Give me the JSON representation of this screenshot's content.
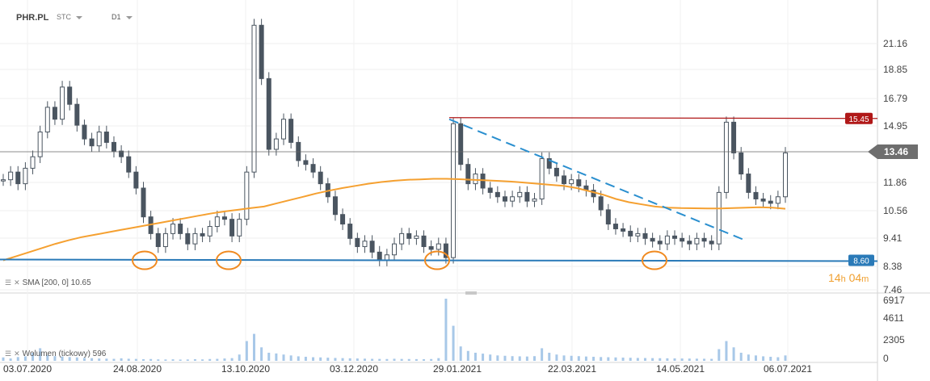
{
  "header": {
    "symbol": "PHR.PL",
    "market": "STC",
    "timeframe": "D1"
  },
  "indicators": {
    "sma_label": "SMA [200, 0] 10.65",
    "volume_label": "Wolumen (tickowy) 596"
  },
  "countdown": {
    "hours": "14",
    "h_unit": "h",
    "minutes": "04",
    "m_unit": "m"
  },
  "colors": {
    "candle": "#4a5560",
    "sma": "#f5a030",
    "support": "#2a7ab8",
    "resistance": "#b01818",
    "trend": "#2a8fcf",
    "current": "#666666",
    "volume": "#a8c8e8"
  },
  "chart_data": {
    "type": "candlestick",
    "y_axis_ticks": [
      "21.16",
      "18.85",
      "16.79",
      "14.95",
      "13.46",
      "11.86",
      "10.56",
      "9.41",
      "8.38",
      "7.46"
    ],
    "ylim": [
      7.46,
      23.8
    ],
    "volume_ticks": [
      "6917",
      "4611",
      "2305",
      "0"
    ],
    "volume_max": 6917,
    "x_tick_labels": [
      "03.07.2020",
      "24.08.2020",
      "13.10.2020",
      "03.12.2020",
      "29.01.2021",
      "22.03.2021",
      "14.05.2021",
      "06.07.2021"
    ],
    "price_labels": {
      "resistance": "15.45",
      "current": "13.46",
      "support": "8.60"
    },
    "levels": {
      "resistance": 15.45,
      "current": 13.46,
      "support": 8.6
    },
    "close_series": [
      12.0,
      12.4,
      11.8,
      12.6,
      13.2,
      14.6,
      16.2,
      15.4,
      17.6,
      16.4,
      15.0,
      14.2,
      13.8,
      14.6,
      14.0,
      13.5,
      13.2,
      12.4,
      11.6,
      10.3,
      9.6,
      9.1,
      9.6,
      10.0,
      9.6,
      9.2,
      9.6,
      9.5,
      9.9,
      10.3,
      10.2,
      9.5,
      10.2,
      12.4,
      22.8,
      18.2,
      13.6,
      14.2,
      15.4,
      14.0,
      13.0,
      12.8,
      12.4,
      11.8,
      11.2,
      10.4,
      10.0,
      9.4,
      9.1,
      9.3,
      8.9,
      8.6,
      8.8,
      9.2,
      9.6,
      9.4,
      9.5,
      9.1,
      9.0,
      9.2,
      8.7,
      15.1,
      12.8,
      11.8,
      12.3,
      11.6,
      11.4,
      11.2,
      11.0,
      11.2,
      11.4,
      11.0,
      11.1,
      13.1,
      12.6,
      12.2,
      11.8,
      12.0,
      11.7,
      11.5,
      11.2,
      10.6,
      10.0,
      9.8,
      9.7,
      9.5,
      9.6,
      9.4,
      9.3,
      9.2,
      9.5,
      9.4,
      9.3,
      9.2,
      9.4,
      9.3,
      9.2,
      11.4,
      15.2,
      13.4,
      12.3,
      11.4,
      11.1,
      11.0,
      10.9,
      11.2,
      13.4
    ],
    "sma_series": [
      8.6,
      8.75,
      8.9,
      9.05,
      9.2,
      9.33,
      9.45,
      9.55,
      9.65,
      9.75,
      9.85,
      9.95,
      10.05,
      10.15,
      10.25,
      10.35,
      10.45,
      10.53,
      10.6,
      10.68,
      10.75,
      10.9,
      11.05,
      11.2,
      11.35,
      11.48,
      11.6,
      11.7,
      11.8,
      11.88,
      11.95,
      12.0,
      12.02,
      12.05,
      12.05,
      12.03,
      12.0,
      11.97,
      11.94,
      11.9,
      11.85,
      11.8,
      11.75,
      11.7,
      11.6,
      11.45,
      11.3,
      11.1,
      10.95,
      10.85,
      10.75,
      10.7,
      10.68,
      10.67,
      10.66,
      10.66,
      10.68,
      10.7,
      10.72,
      10.7,
      10.65
    ],
    "trendline": {
      "from": {
        "x": "29.01.2021",
        "y": 15.45
      },
      "to": {
        "x": "after 14.05.2021",
        "y": 9.5
      }
    },
    "volume_series": [
      380,
      260,
      420,
      500,
      900,
      1400,
      650,
      520,
      480,
      420,
      380,
      320,
      300,
      260,
      240,
      220,
      280,
      230,
      210,
      180,
      200,
      160,
      150,
      170,
      140,
      150,
      180,
      160,
      200,
      220,
      260,
      300,
      700,
      2200,
      3000,
      1500,
      900,
      820,
      700,
      600,
      500,
      450,
      400,
      380,
      350,
      320,
      300,
      280,
      260,
      240,
      220,
      210,
      200,
      230,
      210,
      200,
      190,
      180,
      200,
      300,
      6917,
      3900,
      1600,
      1100,
      900,
      800,
      700,
      600,
      560,
      520,
      500,
      480,
      520,
      1400,
      900,
      700,
      600,
      560,
      520,
      480,
      450,
      420,
      400,
      380,
      360,
      340,
      320,
      310,
      300,
      290,
      280,
      270,
      260,
      250,
      240,
      230,
      220,
      1300,
      2200,
      1500,
      900,
      700,
      600,
      500,
      450,
      400,
      600
    ]
  }
}
